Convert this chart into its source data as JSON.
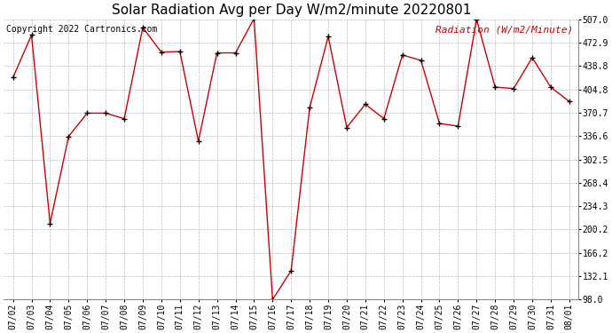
{
  "title": "Solar Radiation Avg per Day W/m2/minute 20220801",
  "copyright": "Copyright 2022 Cartronics.com",
  "legend_label": "Radiation (W/m2/Minute)",
  "x_labels": [
    "07/02",
    "07/03",
    "07/04",
    "07/05",
    "07/06",
    "07/07",
    "07/08",
    "07/09",
    "07/10",
    "07/11",
    "07/12",
    "07/13",
    "07/14",
    "07/15",
    "07/16",
    "07/17",
    "07/18",
    "07/19",
    "07/20",
    "07/21",
    "07/22",
    "07/23",
    "07/24",
    "07/25",
    "07/26",
    "07/27",
    "07/28",
    "07/29",
    "07/30",
    "07/31",
    "08/01"
  ],
  "y_values": [
    422,
    484,
    209,
    336,
    370,
    370,
    362,
    495,
    459,
    460,
    329,
    458,
    458,
    508,
    98,
    140,
    378,
    482,
    349,
    383,
    362,
    455,
    447,
    355,
    351,
    507,
    408,
    406,
    451,
    408,
    387
  ],
  "y_ticks": [
    98.0,
    132.1,
    166.2,
    200.2,
    234.3,
    268.4,
    302.5,
    336.6,
    370.7,
    404.8,
    438.8,
    472.9,
    507.0
  ],
  "y_min": 98.0,
  "y_max": 507.0,
  "line_color": "#cc0000",
  "marker": "+",
  "marker_color": "#000000",
  "bg_color": "#ffffff",
  "grid_color": "#aaaaaa",
  "title_fontsize": 11,
  "copyright_fontsize": 7,
  "legend_color": "#cc0000",
  "legend_fontsize": 8,
  "tick_fontsize": 7
}
